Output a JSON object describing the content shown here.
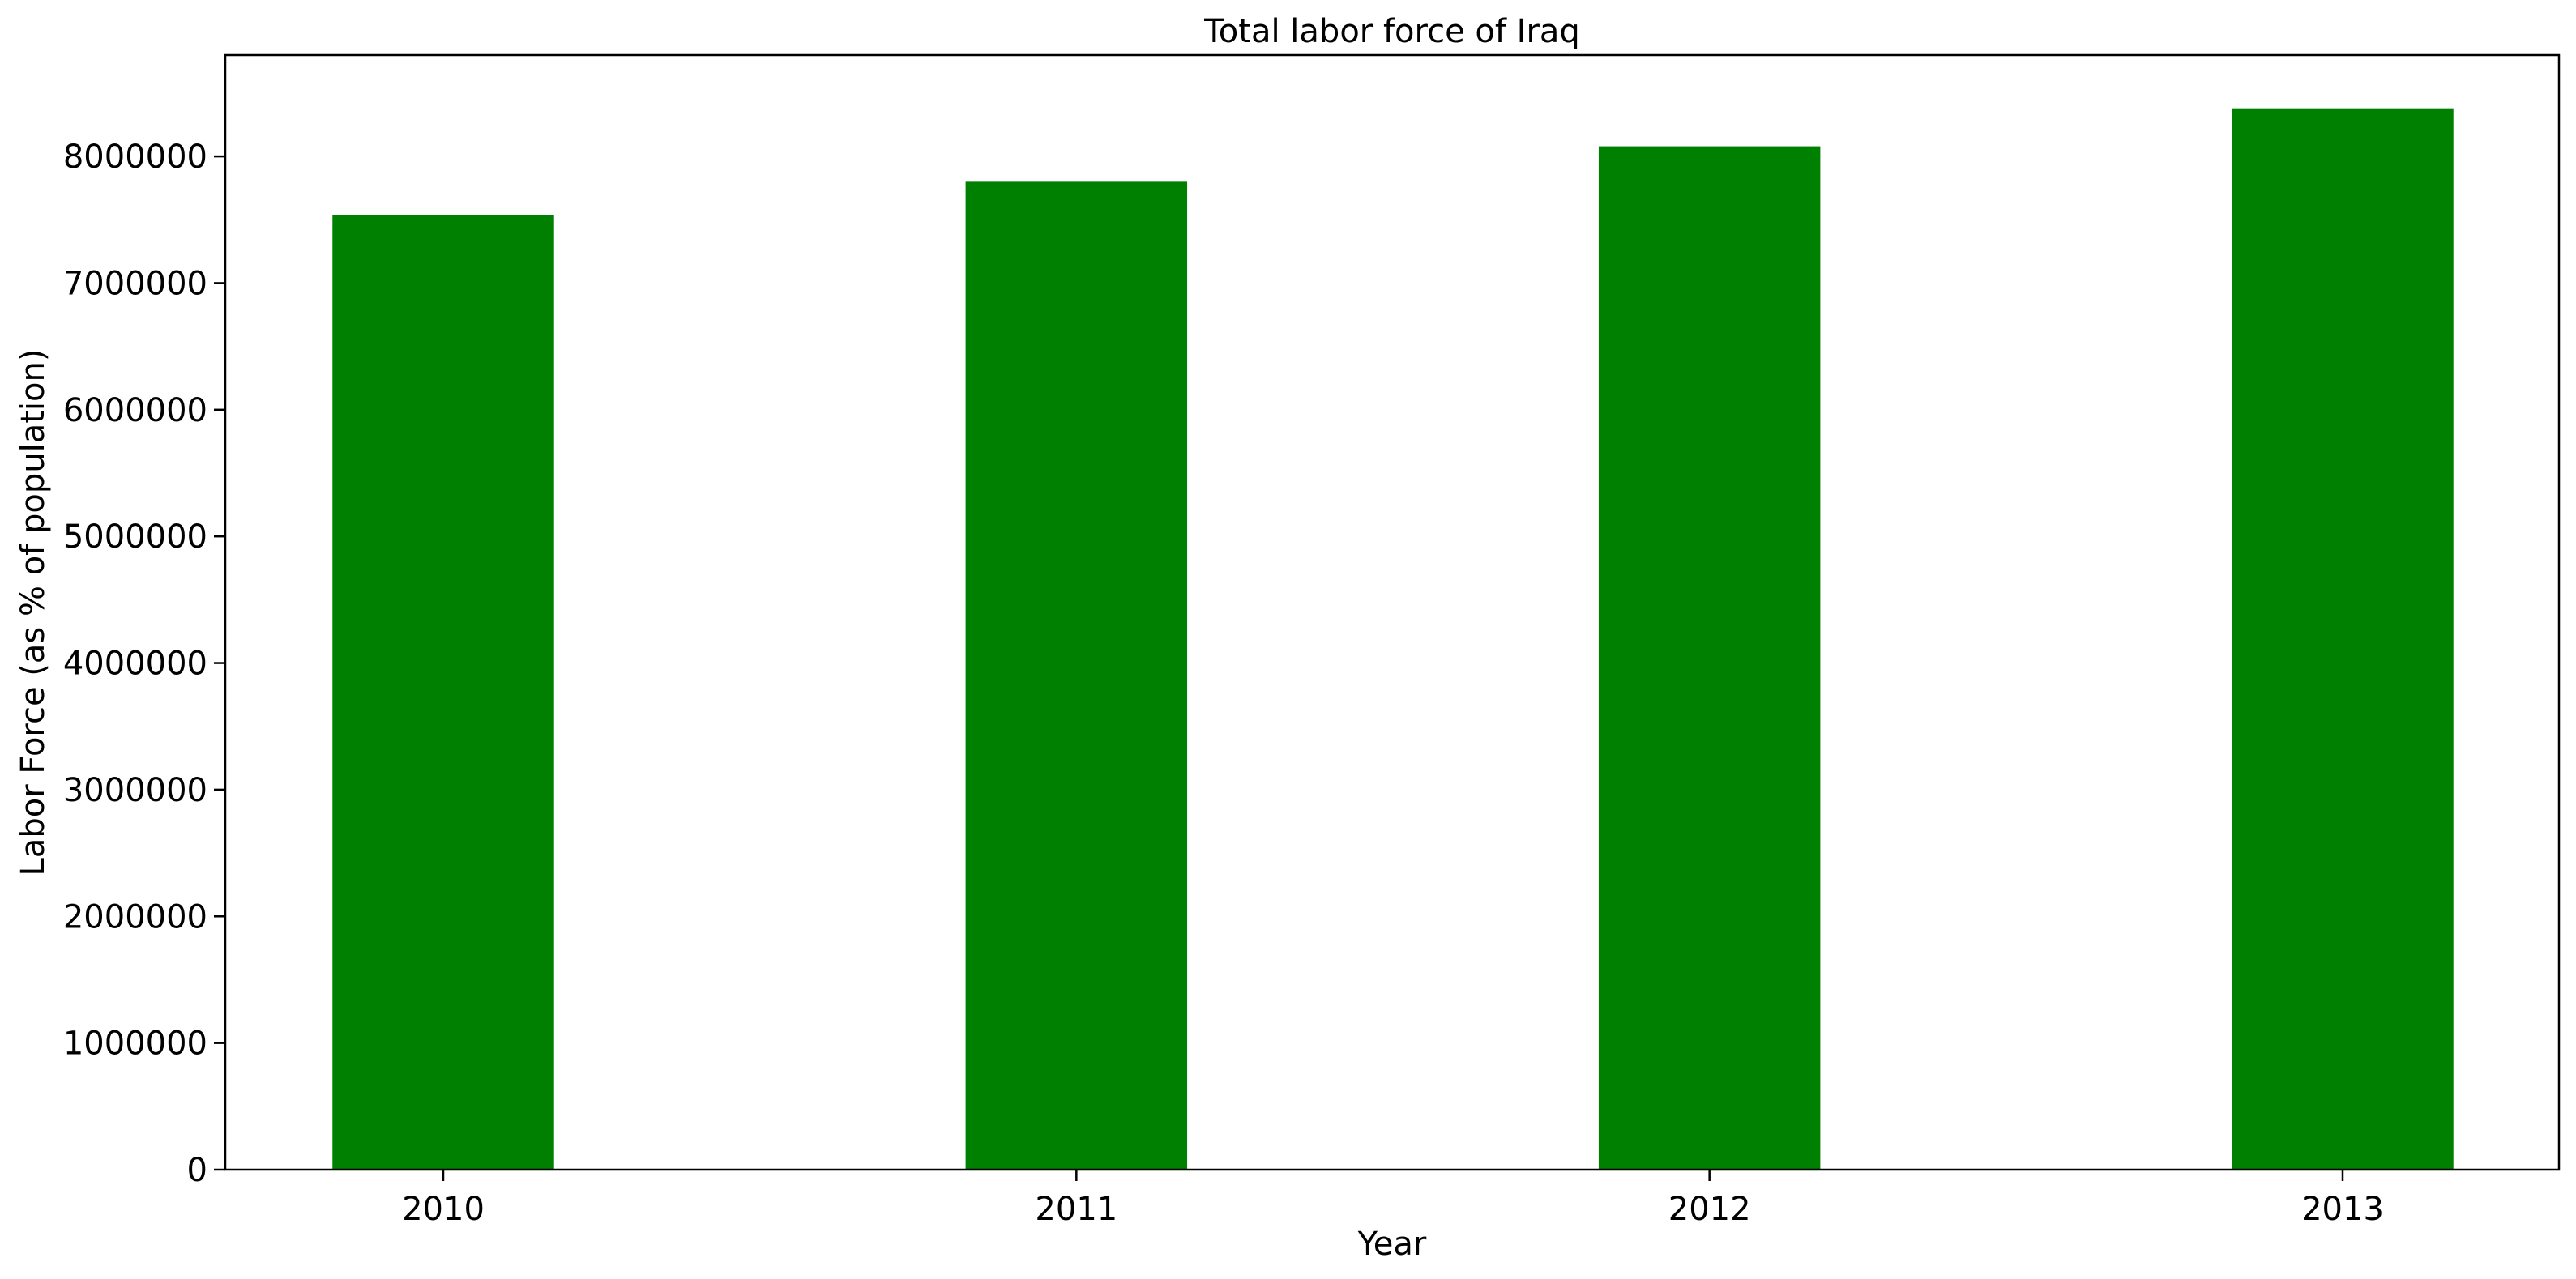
{
  "colors": {
    "bar": "#008000",
    "axis": "#000000",
    "background": "#ffffff"
  },
  "chart_data": {
    "type": "bar",
    "title": "Total labor force of Iraq",
    "xlabel": "Year",
    "ylabel": "Labor Force (as % of population)",
    "categories": [
      "2010",
      "2011",
      "2012",
      "2013"
    ],
    "series": [
      {
        "values": [
          7540000,
          7800000,
          8080000,
          8380000
        ]
      }
    ],
    "ylim": [
      0,
      8800000
    ],
    "yticks": [
      0,
      1000000,
      2000000,
      3000000,
      4000000,
      5000000,
      6000000,
      7000000,
      8000000
    ],
    "ytick_labels": [
      "0",
      "1000000",
      "2000000",
      "3000000",
      "4000000",
      "5000000",
      "6000000",
      "7000000",
      "8000000"
    ],
    "grid": false,
    "legend": "none"
  }
}
